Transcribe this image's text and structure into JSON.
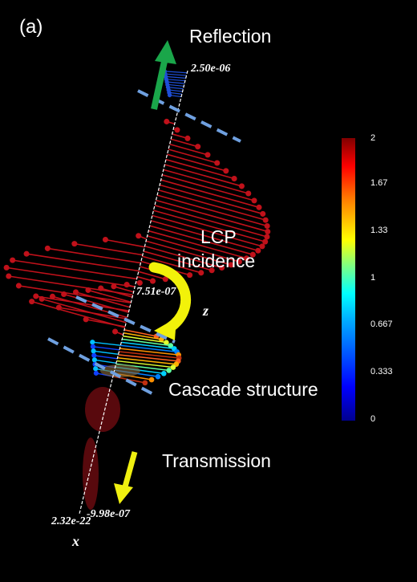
{
  "panel_label": "(a)",
  "labels": {
    "reflection": "Reflection",
    "lcp": "LCP",
    "incidence": "incidence",
    "cascade": "Cascade structure",
    "transmission": "Transmission"
  },
  "axis_ticks": {
    "top": "2.50e-06",
    "middle": "7.51e-07",
    "bottom_right": "-9.98e-07",
    "bottom_left": "2.32e-22"
  },
  "axis_names": {
    "z": "z",
    "x": "x"
  },
  "colorbar": {
    "ticks": [
      "2",
      "1.67",
      "1.33",
      "1",
      "0.667",
      "0.333",
      "0"
    ],
    "colormap": [
      "#00008f",
      "#0000ff",
      "#00b0ff",
      "#00ffff",
      "#80ff80",
      "#ffff00",
      "#ff8000",
      "#ff0000",
      "#800000"
    ]
  },
  "colors": {
    "reflection_arrow": "#1aa64a",
    "transmission_arrow": "#f0f010",
    "curved_arrow": "#f2f20a",
    "dashed_lines": "#6fa0e0",
    "field_red": "#c0111a"
  }
}
